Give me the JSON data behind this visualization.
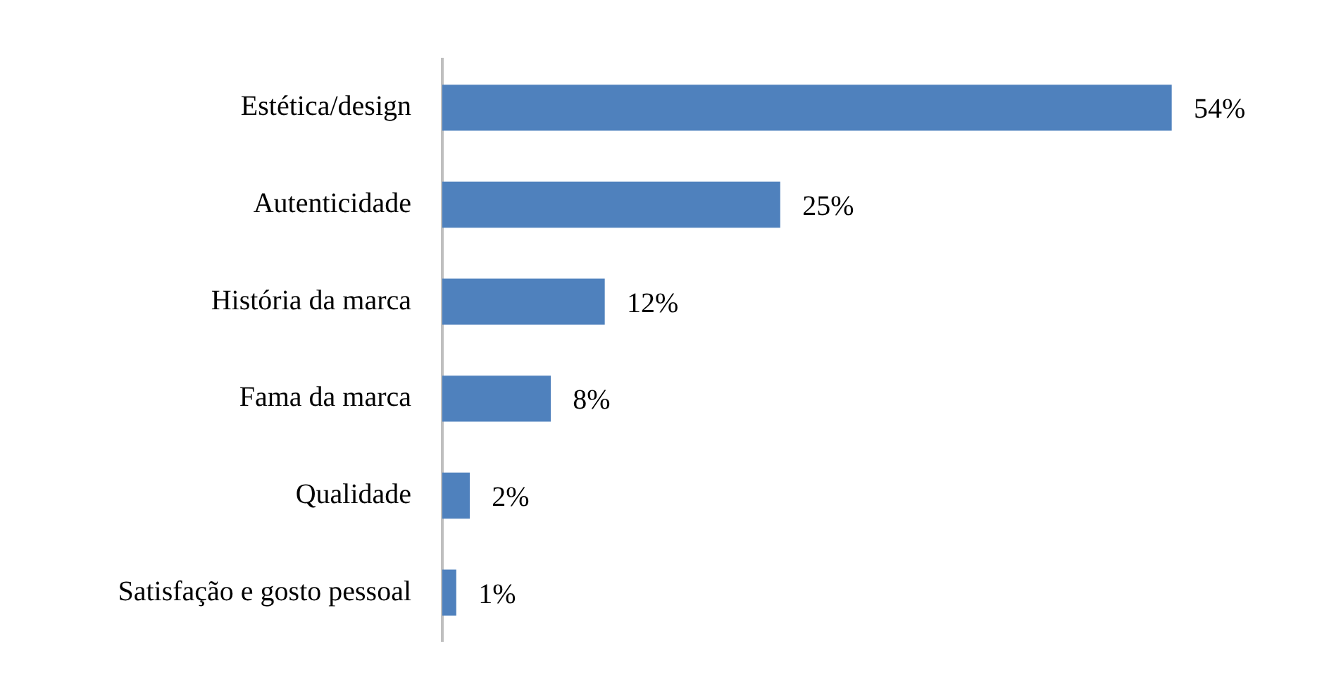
{
  "chart_data": {
    "type": "bar",
    "orientation": "horizontal",
    "categories": [
      "Estética/design",
      "Autenticidade",
      "História da marca",
      "Fama da marca",
      "Qualidade",
      "Satisfação e gosto pessoal"
    ],
    "values": [
      54,
      25,
      12,
      8,
      2,
      1
    ],
    "value_labels": [
      "54%",
      "25%",
      "12%",
      "8%",
      "2%",
      "1%"
    ],
    "color": "#4f81bd",
    "tick_labels": "y",
    "legend": false
  }
}
